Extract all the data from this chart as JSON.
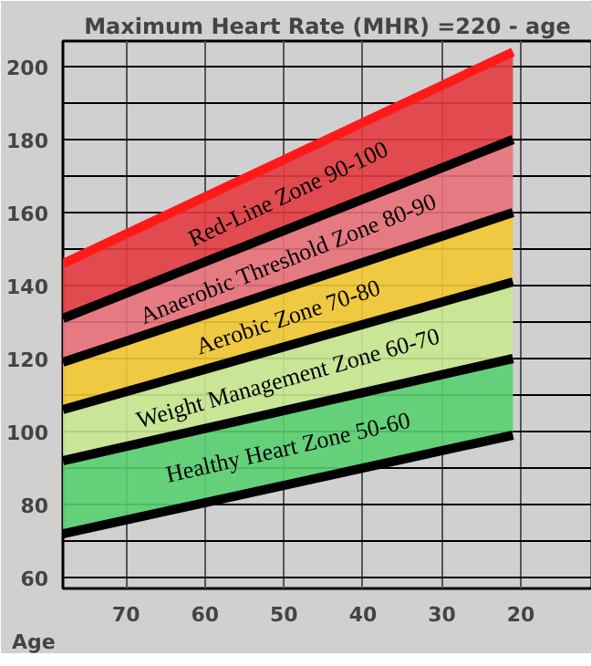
{
  "chart_data": {
    "type": "line",
    "title": "Maximum Heart Rate (MHR) =220 - age",
    "xlabel": "Age",
    "x": [
      78,
      21
    ],
    "xlim": [
      78,
      11
    ],
    "xticks": [
      70,
      60,
      50,
      40,
      30,
      20
    ],
    "ylim": [
      57,
      207
    ],
    "yticks": [
      {
        "value": 60,
        "label": "60"
      },
      {
        "value": 70,
        "label": null
      },
      {
        "value": 80,
        "label": "80"
      },
      {
        "value": 90,
        "label": null
      },
      {
        "value": 100,
        "label": "100"
      },
      {
        "value": 110,
        "label": null
      },
      {
        "value": 120,
        "label": "120"
      },
      {
        "value": 130,
        "label": null
      },
      {
        "value": 140,
        "label": "140"
      },
      {
        "value": 150,
        "label": null
      },
      {
        "value": 160,
        "label": "160"
      },
      {
        "value": 170,
        "label": null
      },
      {
        "value": 180,
        "label": "180"
      },
      {
        "value": 190,
        "label": null
      },
      {
        "value": 200,
        "label": "200"
      }
    ],
    "grid": true,
    "colors": [
      "#e23c40",
      "#e8707a",
      "#f2c832",
      "#c8e890",
      "#58d070"
    ],
    "annotations": [
      "Red-Line Zone 90-100",
      "Anaerobic Threshold Zone 80-90",
      "Aerobic Zone 70-80",
      "Weight Management Zone 60-70",
      "Healthy Heart Zone 50-60"
    ],
    "series": [
      {
        "color": "#ff1a1a",
        "values": [
          146,
          204
        ],
        "upper": [
          146,
          204
        ],
        "lower": [
          131,
          180
        ]
      },
      {
        "color": "#000000",
        "values": [
          131,
          180
        ],
        "upper": [
          131,
          180
        ],
        "lower": [
          119,
          160
        ]
      },
      {
        "color": "#000000",
        "values": [
          119,
          160
        ],
        "upper": [
          119,
          160
        ],
        "lower": [
          106,
          141
        ]
      },
      {
        "color": "#000000",
        "values": [
          106,
          141
        ],
        "upper": [
          106,
          141
        ],
        "lower": [
          92,
          120
        ]
      },
      {
        "color": "#000000",
        "values": [
          92,
          120
        ],
        "upper": [
          92,
          120
        ],
        "lower": [
          72,
          99
        ]
      },
      {
        "color": "#000000",
        "values": [
          72,
          99
        ]
      }
    ]
  }
}
